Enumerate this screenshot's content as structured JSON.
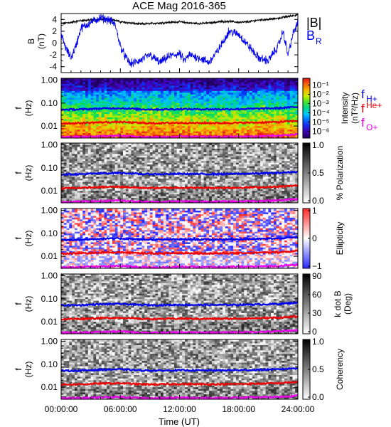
{
  "chart_data": {
    "title": "ACE Mag 2016-365",
    "type": "line+spectrogram",
    "x_axis": {
      "label": "Time (UT)",
      "ticks": [
        "00:00:00",
        "06:00:00",
        "12:00:00",
        "18:00:00",
        "24:00:00"
      ],
      "range_hours": [
        0,
        24
      ]
    },
    "field_panel": {
      "ylabel": "B (nT)",
      "ylabel_line1": "B",
      "ylabel_line2": "(nT)",
      "ylim": [
        -5,
        5
      ],
      "yticks": [
        "4",
        "2",
        "0",
        "-2",
        "-4"
      ],
      "series": [
        {
          "name": "|B|",
          "color": "#000000",
          "x": [
            0,
            1,
            2,
            3,
            4,
            5,
            6,
            7,
            8,
            9,
            10,
            11,
            12,
            13,
            14,
            15,
            16,
            17,
            18,
            19,
            20,
            21,
            22,
            23,
            24
          ],
          "values": [
            3.3,
            3.5,
            3.8,
            3.9,
            4.0,
            4.1,
            3.6,
            3.4,
            3.2,
            3.3,
            3.4,
            3.5,
            3.6,
            3.4,
            3.3,
            3.4,
            3.6,
            3.7,
            3.5,
            3.6,
            3.9,
            4.0,
            4.2,
            4.5,
            4.8
          ]
        },
        {
          "name": "B",
          "label_sub": "R",
          "color": "#0000ee",
          "x": [
            0,
            0.5,
            1,
            1.5,
            2,
            3,
            4,
            5,
            5.5,
            6,
            6.5,
            7,
            8,
            9,
            10,
            11,
            12,
            12.5,
            13,
            14,
            15,
            16,
            16.5,
            17,
            18,
            19,
            20,
            21,
            22,
            22.5,
            23,
            23.5,
            24
          ],
          "values": [
            1.5,
            -1.0,
            -2.5,
            -0.5,
            2.5,
            3.5,
            4.3,
            3.8,
            3.0,
            -0.5,
            -2.3,
            -3.5,
            -3.0,
            -2.0,
            -3.3,
            -2.2,
            -1.8,
            -3.0,
            -2.0,
            -2.5,
            -3.3,
            -1.0,
            0.5,
            2.0,
            1.5,
            -0.5,
            -2.5,
            -3.0,
            -0.5,
            2.0,
            -2.0,
            1.5,
            3.5
          ]
        }
      ]
    },
    "spectrogram_panels": [
      {
        "id": "intensity",
        "ylabel_line1": "f",
        "ylabel_line2": "(Hz)",
        "colorbar_label": "Intensity (nT²/Hz)",
        "colorbar_label_line1": "Intensity",
        "colorbar_label_line2": "(nT²/Hz)",
        "colorbar_ticks": [
          "10⁻¹",
          "10⁻²",
          "10⁻³",
          "10⁻⁴",
          "10⁻⁵",
          "10⁻⁶"
        ],
        "colorbar_range": [
          1e-06,
          0.1
        ],
        "colormap": "rainbow"
      },
      {
        "id": "polarization",
        "ylabel_line1": "f",
        "ylabel_line2": "(Hz)",
        "colorbar_label": "% Polarization",
        "colorbar_ticks": [
          "1.0",
          "0.5",
          "0.0"
        ],
        "colorbar_range": [
          0,
          1
        ],
        "colormap": "gray_reversed"
      },
      {
        "id": "ellipticity",
        "ylabel_line1": "f",
        "ylabel_line2": "(Hz)",
        "colorbar_label": "Ellipticity",
        "colorbar_ticks": [
          "1",
          "0",
          "−1"
        ],
        "colorbar_range": [
          -1,
          1
        ],
        "colormap": "blue_white_red"
      },
      {
        "id": "kdotb",
        "ylabel_line1": "f",
        "ylabel_line2": "(Hz)",
        "colorbar_label": "k dot B (Deg)",
        "colorbar_label_line1": "k dot B",
        "colorbar_label_line2": "(Deg)",
        "colorbar_ticks": [
          "90",
          "60",
          "30",
          "0"
        ],
        "colorbar_range": [
          0,
          90
        ],
        "colormap": "gray_reversed"
      },
      {
        "id": "coherency",
        "ylabel_line1": "f",
        "ylabel_line2": "(Hz)",
        "colorbar_label": "Coherency",
        "colorbar_ticks": [
          "1.0",
          "0.5",
          "0.0"
        ],
        "colorbar_range": [
          0,
          1
        ],
        "colormap": "gray_reversed"
      }
    ],
    "freq_axis": {
      "scale": "log",
      "ylim": [
        0.003,
        1.2
      ],
      "yticks": [
        "1.00",
        "0.10",
        "0.01"
      ]
    },
    "gyrofrequencies": [
      {
        "name": "f",
        "sub": "H+",
        "color": "#0000ee",
        "x": [
          0,
          2,
          4,
          6,
          8,
          10,
          12,
          14,
          16,
          18,
          20,
          22,
          24
        ],
        "values": [
          0.052,
          0.053,
          0.058,
          0.06,
          0.054,
          0.053,
          0.055,
          0.054,
          0.054,
          0.055,
          0.057,
          0.06,
          0.068
        ]
      },
      {
        "name": "f",
        "sup": "He+",
        "color": "#ee0000",
        "x": [
          0,
          2,
          4,
          6,
          8,
          10,
          12,
          14,
          16,
          18,
          20,
          22,
          24
        ],
        "values": [
          0.013,
          0.0135,
          0.0145,
          0.015,
          0.0135,
          0.0133,
          0.0138,
          0.0135,
          0.0135,
          0.0138,
          0.0143,
          0.015,
          0.017
        ]
      },
      {
        "name": "f",
        "sub": "O+",
        "color": "#ee00ee",
        "x": [
          0,
          2,
          4,
          6,
          8,
          10,
          12,
          14,
          16,
          18,
          20,
          22,
          24
        ],
        "values": [
          0.0033,
          0.0034,
          0.0036,
          0.0038,
          0.0034,
          0.0033,
          0.0035,
          0.0034,
          0.0034,
          0.0035,
          0.0036,
          0.0038,
          0.0043
        ]
      }
    ]
  }
}
